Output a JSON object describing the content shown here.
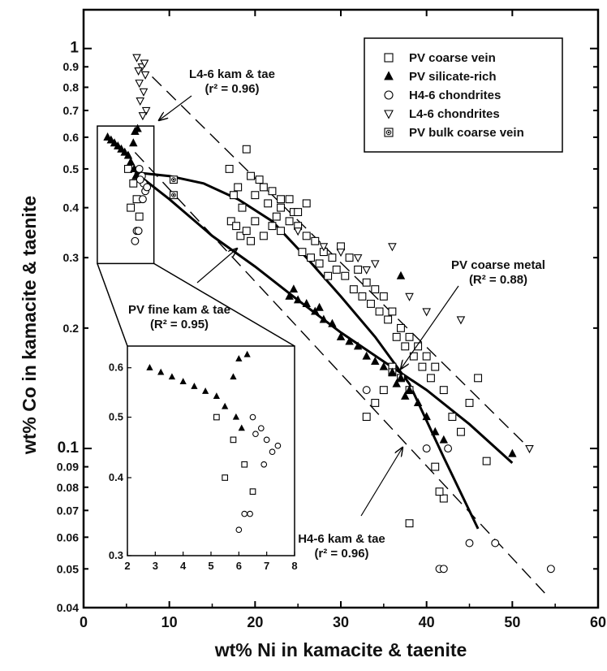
{
  "chart_data": {
    "type": "scatter",
    "title": "",
    "xlabel": "wt% Ni in kamacite & taenite",
    "ylabel": "wt% Co in kamacite & taenite",
    "xlim": [
      0,
      60
    ],
    "ylim": [
      0.04,
      1.25
    ],
    "yscale": "log",
    "grid": false,
    "legend_position": "top-right",
    "x_ticks": [
      "0",
      "10",
      "20",
      "30",
      "40",
      "50",
      "60"
    ],
    "y_ticks": [
      {
        "v": 1,
        "label": "1",
        "major": true
      },
      {
        "v": 0.9,
        "label": "0.9",
        "major": false
      },
      {
        "v": 0.8,
        "label": "0.8",
        "major": false
      },
      {
        "v": 0.7,
        "label": "0.7",
        "major": false
      },
      {
        "v": 0.6,
        "label": "0.6",
        "major": false
      },
      {
        "v": 0.5,
        "label": "0.5",
        "major": false
      },
      {
        "v": 0.4,
        "label": "0.4",
        "major": false
      },
      {
        "v": 0.3,
        "label": "0.3",
        "major": false
      },
      {
        "v": 0.2,
        "label": "0.2",
        "major": false
      },
      {
        "v": 0.1,
        "label": "0.1",
        "major": true
      },
      {
        "v": 0.09,
        "label": "0.09",
        "major": false
      },
      {
        "v": 0.08,
        "label": "0.08",
        "major": false
      },
      {
        "v": 0.07,
        "label": "0.07",
        "major": false
      },
      {
        "v": 0.06,
        "label": "0.06",
        "major": false
      },
      {
        "v": 0.05,
        "label": "0.05",
        "major": false
      },
      {
        "v": 0.04,
        "label": "0.04",
        "major": false
      }
    ],
    "series": [
      {
        "name": "PV coarse vein",
        "marker": "square-open",
        "points": [
          [
            5.2,
            0.5
          ],
          [
            5.8,
            0.46
          ],
          [
            6.2,
            0.42
          ],
          [
            5.5,
            0.4
          ],
          [
            6.5,
            0.38
          ],
          [
            17,
            0.5
          ],
          [
            18,
            0.45
          ],
          [
            19,
            0.56
          ],
          [
            19.5,
            0.48
          ],
          [
            17.5,
            0.43
          ],
          [
            18.5,
            0.4
          ],
          [
            20,
            0.43
          ],
          [
            20.5,
            0.47
          ],
          [
            21,
            0.45
          ],
          [
            22,
            0.44
          ],
          [
            21.5,
            0.41
          ],
          [
            23,
            0.42
          ],
          [
            22.5,
            0.38
          ],
          [
            17.2,
            0.37
          ],
          [
            17.8,
            0.36
          ],
          [
            18.3,
            0.34
          ],
          [
            19,
            0.35
          ],
          [
            19.5,
            0.33
          ],
          [
            20,
            0.37
          ],
          [
            21,
            0.34
          ],
          [
            22,
            0.36
          ],
          [
            23,
            0.35
          ],
          [
            24,
            0.37
          ],
          [
            24.5,
            0.39
          ],
          [
            25,
            0.36
          ],
          [
            26,
            0.34
          ],
          [
            25.5,
            0.31
          ],
          [
            26.5,
            0.3
          ],
          [
            27,
            0.33
          ],
          [
            27.5,
            0.29
          ],
          [
            28,
            0.31
          ],
          [
            28.5,
            0.27
          ],
          [
            29,
            0.3
          ],
          [
            29.5,
            0.28
          ],
          [
            30,
            0.32
          ],
          [
            30.5,
            0.27
          ],
          [
            31,
            0.3
          ],
          [
            31.5,
            0.25
          ],
          [
            32,
            0.28
          ],
          [
            32.5,
            0.24
          ],
          [
            33,
            0.26
          ],
          [
            33.5,
            0.23
          ],
          [
            34,
            0.25
          ],
          [
            34.5,
            0.22
          ],
          [
            35,
            0.24
          ],
          [
            35.5,
            0.21
          ],
          [
            36,
            0.22
          ],
          [
            36.5,
            0.19
          ],
          [
            37,
            0.2
          ],
          [
            37.5,
            0.18
          ],
          [
            38,
            0.19
          ],
          [
            38.5,
            0.17
          ],
          [
            39,
            0.18
          ],
          [
            39.5,
            0.16
          ],
          [
            40,
            0.17
          ],
          [
            40.5,
            0.15
          ],
          [
            36,
            0.16
          ],
          [
            37,
            0.15
          ],
          [
            38,
            0.14
          ],
          [
            41,
            0.16
          ],
          [
            42,
            0.14
          ],
          [
            43,
            0.12
          ],
          [
            44,
            0.11
          ],
          [
            45,
            0.13
          ],
          [
            46,
            0.15
          ],
          [
            47,
            0.093
          ],
          [
            42,
            0.075
          ],
          [
            41,
            0.09
          ],
          [
            41.5,
            0.078
          ],
          [
            38,
            0.065
          ],
          [
            33,
            0.12
          ],
          [
            34,
            0.13
          ],
          [
            35,
            0.14
          ],
          [
            36,
            0.155
          ],
          [
            23,
            0.4
          ],
          [
            24,
            0.42
          ],
          [
            25,
            0.39
          ],
          [
            26,
            0.41
          ]
        ]
      },
      {
        "name": "PV silicate-rich",
        "marker": "triangle-up-filled",
        "points": [
          [
            2.8,
            0.6
          ],
          [
            3.2,
            0.59
          ],
          [
            3.6,
            0.58
          ],
          [
            4.0,
            0.57
          ],
          [
            4.4,
            0.56
          ],
          [
            4.8,
            0.55
          ],
          [
            5.2,
            0.54
          ],
          [
            5.8,
            0.58
          ],
          [
            6.0,
            0.62
          ],
          [
            6.3,
            0.63
          ],
          [
            5.5,
            0.52
          ],
          [
            5.9,
            0.5
          ],
          [
            6.1,
            0.48
          ],
          [
            24,
            0.24
          ],
          [
            25,
            0.235
          ],
          [
            26,
            0.23
          ],
          [
            27,
            0.22
          ],
          [
            28,
            0.21
          ],
          [
            29,
            0.205
          ],
          [
            30,
            0.19
          ],
          [
            31,
            0.185
          ],
          [
            32,
            0.18
          ],
          [
            33,
            0.17
          ],
          [
            34,
            0.165
          ],
          [
            35,
            0.16
          ],
          [
            36,
            0.155
          ],
          [
            37,
            0.15
          ],
          [
            38,
            0.14
          ],
          [
            39,
            0.13
          ],
          [
            40,
            0.12
          ],
          [
            41,
            0.11
          ],
          [
            42,
            0.105
          ],
          [
            36.5,
            0.145
          ],
          [
            37.5,
            0.135
          ],
          [
            50,
            0.097
          ],
          [
            37,
            0.27
          ],
          [
            24.5,
            0.25
          ],
          [
            27.5,
            0.225
          ]
        ]
      },
      {
        "name": "H4-6 chondrites",
        "marker": "circle-open",
        "points": [
          [
            6.5,
            0.5
          ],
          [
            6.8,
            0.48
          ],
          [
            7.0,
            0.46
          ],
          [
            7.2,
            0.44
          ],
          [
            6.6,
            0.47
          ],
          [
            7.4,
            0.45
          ],
          [
            6.9,
            0.42
          ],
          [
            6.2,
            0.35
          ],
          [
            6.0,
            0.33
          ],
          [
            6.4,
            0.35
          ],
          [
            33,
            0.14
          ],
          [
            40,
            0.1
          ],
          [
            42.5,
            0.1
          ],
          [
            45,
            0.058
          ],
          [
            48,
            0.058
          ],
          [
            54.5,
            0.05
          ],
          [
            41.5,
            0.05
          ],
          [
            42,
            0.05
          ]
        ]
      },
      {
        "name": "L4-6 chondrites",
        "marker": "triangle-down-open",
        "points": [
          [
            6.2,
            0.95
          ],
          [
            6.8,
            0.9
          ],
          [
            7.2,
            0.86
          ],
          [
            6.5,
            0.82
          ],
          [
            7.0,
            0.78
          ],
          [
            6.6,
            0.74
          ],
          [
            7.3,
            0.7
          ],
          [
            6.9,
            0.68
          ],
          [
            6.4,
            0.88
          ],
          [
            7.1,
            0.92
          ],
          [
            25,
            0.35
          ],
          [
            28,
            0.32
          ],
          [
            30,
            0.31
          ],
          [
            32,
            0.3
          ],
          [
            34,
            0.29
          ],
          [
            38,
            0.24
          ],
          [
            40,
            0.22
          ],
          [
            44,
            0.21
          ],
          [
            52,
            0.1
          ],
          [
            36,
            0.32
          ],
          [
            33,
            0.28
          ]
        ]
      },
      {
        "name": "PV bulk coarse vein",
        "marker": "square-dot",
        "points": [
          [
            10.5,
            0.47
          ],
          [
            10.5,
            0.43
          ]
        ]
      }
    ],
    "fits": [
      {
        "name": "PV coarse metal",
        "points": [
          [
            6,
            0.49
          ],
          [
            10,
            0.48
          ],
          [
            14,
            0.46
          ],
          [
            18,
            0.42
          ],
          [
            22,
            0.37
          ],
          [
            26,
            0.3
          ],
          [
            30,
            0.24
          ],
          [
            34,
            0.19
          ],
          [
            38,
            0.145
          ],
          [
            42,
            0.095
          ],
          [
            46,
            0.063
          ]
        ]
      },
      {
        "name": "PV fine kam & tae",
        "points": [
          [
            6,
            0.49
          ],
          [
            10,
            0.42
          ],
          [
            15,
            0.34
          ],
          [
            20,
            0.285
          ],
          [
            25,
            0.235
          ],
          [
            30,
            0.195
          ],
          [
            35,
            0.165
          ],
          [
            40,
            0.14
          ],
          [
            45,
            0.115
          ],
          [
            50,
            0.092
          ]
        ]
      }
    ],
    "refs": [
      {
        "name": "L4-6 kam & tae",
        "points": [
          [
            8,
            0.85
          ],
          [
            52,
            0.1
          ]
        ]
      },
      {
        "name": "H4-6 kam & tae",
        "points": [
          [
            6,
            0.55
          ],
          [
            54,
            0.043
          ]
        ]
      }
    ],
    "inset": {
      "xlim": [
        2,
        8
      ],
      "ylim": [
        0.3,
        0.65
      ],
      "yscale": "log",
      "x_ticks": [
        "2",
        "3",
        "4",
        "5",
        "6",
        "7",
        "8"
      ],
      "y_ticks": [
        "0.3",
        "0.4",
        "0.5",
        "0.6"
      ],
      "box_xlim": [
        1.6,
        8.2
      ],
      "box_ylim": [
        0.29,
        0.64
      ]
    },
    "annotations": [
      {
        "id": "l46",
        "lines": [
          "L4-6 kam & tae",
          "(r² = 0.96)"
        ]
      },
      {
        "id": "pvfine",
        "lines": [
          "PV fine kam & tae",
          "(R² = 0.95)"
        ]
      },
      {
        "id": "pvcoarse",
        "lines": [
          "PV coarse metal",
          "(R² = 0.88)"
        ]
      },
      {
        "id": "h46",
        "lines": [
          "H4-6 kam & tae",
          "(r² = 0.96)"
        ]
      }
    ]
  }
}
